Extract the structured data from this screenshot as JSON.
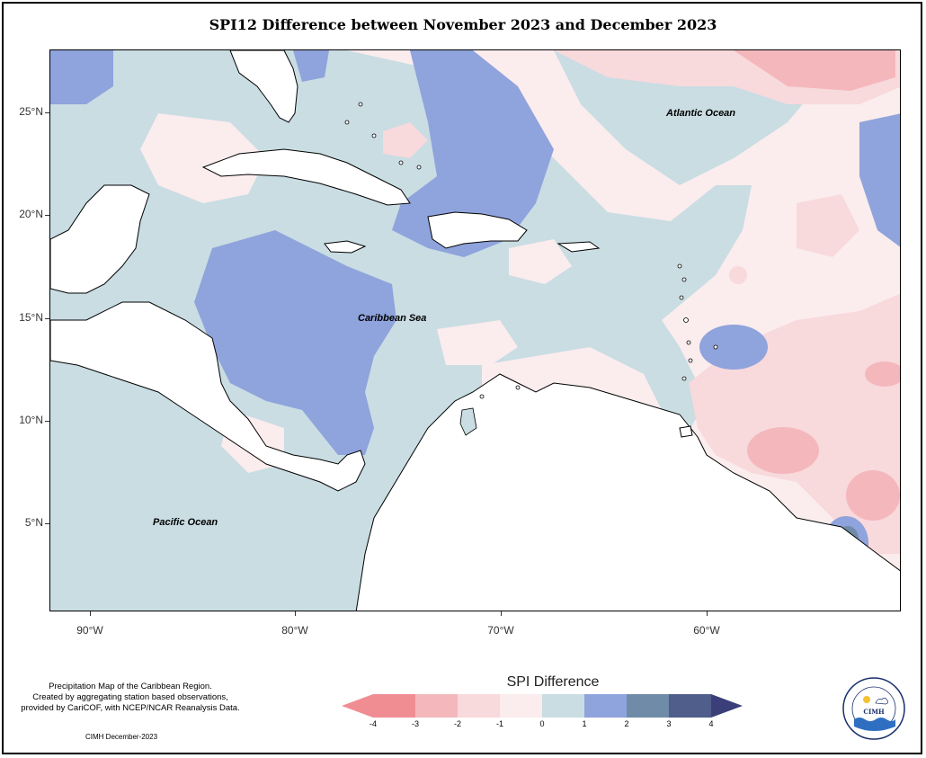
{
  "title": "SPI12 Difference between November 2023 and December 2023",
  "map": {
    "region": "Caribbean",
    "labels": {
      "atlantic": "Atlantic Ocean",
      "caribbean": "Caribbean Sea",
      "pacific": "Pacific Ocean"
    },
    "lat_ticks": [
      "25°N",
      "20°N",
      "15°N",
      "10°N",
      "5°N"
    ],
    "lon_ticks": [
      "90°W",
      "80°W",
      "70°W",
      "60°W"
    ],
    "lat_range": [
      0.8,
      28.0
    ],
    "lon_range": [
      -92.0,
      -50.8
    ]
  },
  "legend": {
    "title": "SPI Difference",
    "ticks": [
      "-4",
      "-3",
      "-2",
      "-1",
      "0",
      "1",
      "2",
      "3",
      "4"
    ],
    "colors": [
      "#f08d93",
      "#f4b8bc",
      "#f8d9dc",
      "#fbeced",
      "#c9dde3",
      "#8fa3dc",
      "#6f8ba8",
      "#4f5e8a",
      "#3a3f7a"
    ]
  },
  "credit": {
    "line1": "Precipitation Map of the Caribbean Region.",
    "line2": "Created by aggregating station based observations,",
    "line3": "provided by CariCOF, with NCEP/NCAR Reanalysis Data.",
    "date": "CIMH December-2023"
  },
  "logo": {
    "arc_text": "Caribbean Institute for Meteorology and Hydrology",
    "abbr": "CIMH"
  }
}
